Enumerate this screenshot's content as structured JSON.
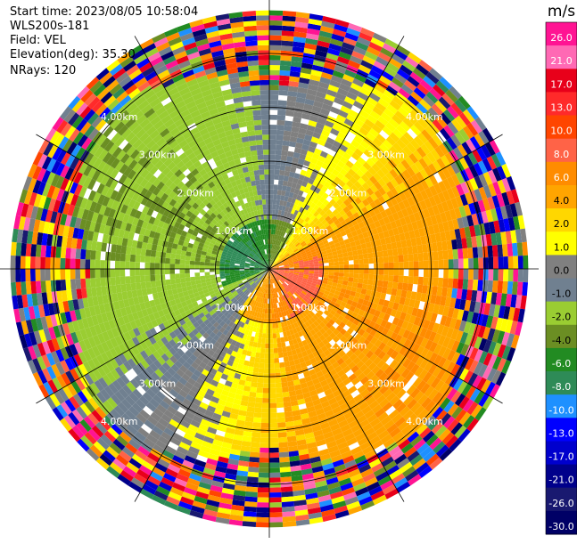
{
  "header": {
    "start_time": "Start time: 2023/08/05 10:58:04",
    "radar": "WLS200s-181",
    "field": "Field: VEL",
    "elevation": "Elevation(deg): 35.30",
    "nrays": "NRays: 120"
  },
  "chart_data": {
    "type": "polar-ppi",
    "field": "VEL",
    "units": "m/s",
    "nrays": 120,
    "range_rings_km": [
      1.0,
      2.0,
      3.0,
      4.0
    ],
    "ring_label_text": [
      "1.00km",
      "2.00km",
      "3.00km",
      "4.00km"
    ],
    "max_range_km": 4.8,
    "colorbar": {
      "title": "m/s",
      "tick_labels": [
        "26.0",
        "21.0",
        "17.0",
        "13.0",
        "10.0",
        "8.0",
        "6.0",
        "4.0",
        "2.0",
        "1.0",
        "0.0",
        "-1.0",
        "-2.0",
        "-4.0",
        "-6.0",
        "-8.0",
        "-10.0",
        "-13.0",
        "-17.0",
        "-21.0",
        "-26.0",
        "-30.0"
      ],
      "colors": [
        "#ff1493",
        "#ff69b4",
        "#e8001a",
        "#ff2a2a",
        "#ff4500",
        "#ff6347",
        "#ff8c00",
        "#ffa500",
        "#ffd700",
        "#ffff00",
        "#808080",
        "#708090",
        "#9acd32",
        "#6b8e23",
        "#228b22",
        "#2e8b57",
        "#1e90ff",
        "#0000ff",
        "#0000cd",
        "#00008b",
        "#191970",
        "#000066"
      ]
    }
  }
}
